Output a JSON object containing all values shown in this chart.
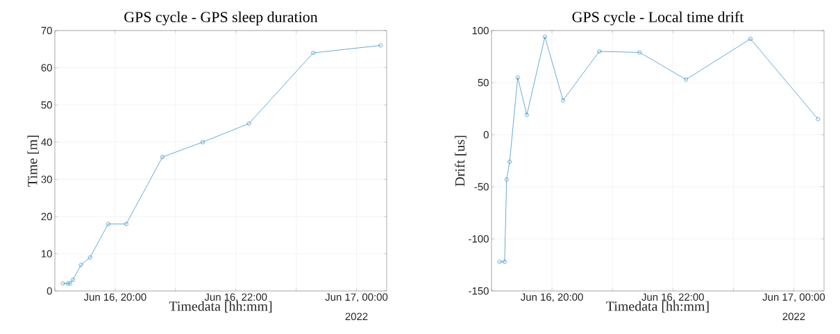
{
  "chart_data": [
    {
      "type": "line",
      "title": "GPS cycle - GPS sleep duration",
      "xlabel": "Timedata [hh:mm]",
      "ylabel": "Time [m]",
      "x": [
        "2022-06-16T19:08",
        "2022-06-16T19:13",
        "2022-06-16T19:15",
        "2022-06-16T19:18",
        "2022-06-16T19:26",
        "2022-06-16T19:35",
        "2022-06-16T19:53",
        "2022-06-16T20:11",
        "2022-06-16T20:47",
        "2022-06-16T21:27",
        "2022-06-16T22:13",
        "2022-06-16T23:17",
        "2022-06-17T00:24"
      ],
      "series": [
        {
          "color": "#0072bd",
          "values": [
            2,
            2,
            2,
            3,
            7,
            9,
            18,
            18,
            36,
            40,
            45,
            64,
            66
          ]
        }
      ],
      "xlim": [
        "2022-06-16T19:00",
        "2022-06-17T00:30"
      ],
      "ylim": [
        0,
        70
      ],
      "xticks": [
        {
          "value": "2022-06-16T19:00",
          "label": null
        },
        {
          "value": "2022-06-16T20:00",
          "label": "Jun 16, 20:00"
        },
        {
          "value": "2022-06-16T21:00",
          "label": null
        },
        {
          "value": "2022-06-16T22:00",
          "label": "Jun 16, 22:00"
        },
        {
          "value": "2022-06-16T23:00",
          "label": null
        },
        {
          "value": "2022-06-17T00:00",
          "label": "Jun 17, 00:00"
        }
      ],
      "yticks": [
        0,
        10,
        20,
        30,
        40,
        50,
        60,
        70
      ],
      "annotations": [
        "2022"
      ],
      "grid": true,
      "marker": "circle",
      "line_style": "solid"
    },
    {
      "type": "line",
      "title": "GPS cycle - Local time drift",
      "xlabel": "Timedata [hh:mm]",
      "ylabel": "Drift [us]",
      "x": [
        "2022-06-16T19:08",
        "2022-06-16T19:13",
        "2022-06-16T19:15",
        "2022-06-16T19:18",
        "2022-06-16T19:26",
        "2022-06-16T19:35",
        "2022-06-16T19:53",
        "2022-06-16T20:11",
        "2022-06-16T20:47",
        "2022-06-16T21:27",
        "2022-06-16T22:13",
        "2022-06-16T23:17",
        "2022-06-17T00:24"
      ],
      "series": [
        {
          "color": "#0072bd",
          "values": [
            -122,
            -122,
            -43,
            -26,
            55,
            19,
            94,
            33,
            80,
            79,
            53,
            92,
            15
          ]
        }
      ],
      "xlim": [
        "2022-06-16T19:00",
        "2022-06-17T00:30"
      ],
      "ylim": [
        -150,
        100
      ],
      "xticks": [
        {
          "value": "2022-06-16T19:00",
          "label": null
        },
        {
          "value": "2022-06-16T20:00",
          "label": "Jun 16, 20:00"
        },
        {
          "value": "2022-06-16T21:00",
          "label": null
        },
        {
          "value": "2022-06-16T22:00",
          "label": "Jun 16, 22:00"
        },
        {
          "value": "2022-06-16T23:00",
          "label": null
        },
        {
          "value": "2022-06-17T00:00",
          "label": "Jun 17, 00:00"
        }
      ],
      "yticks": [
        -150,
        -100,
        -50,
        0,
        50,
        100
      ],
      "annotations": [
        "2022"
      ],
      "grid": true,
      "marker": "circle",
      "line_style": "solid"
    }
  ]
}
